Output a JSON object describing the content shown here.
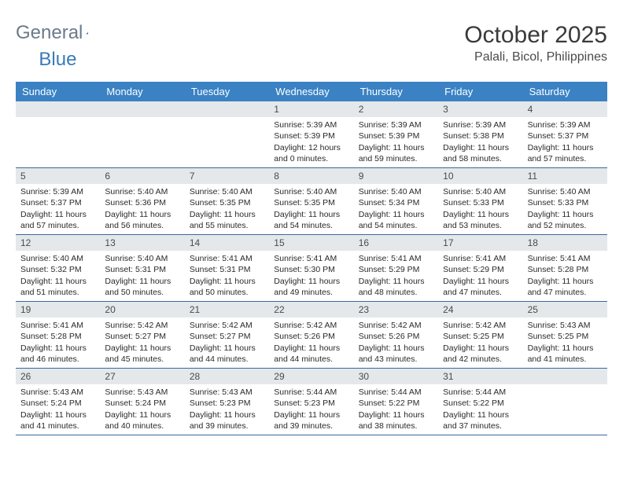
{
  "logo": {
    "word1": "General",
    "word2": "Blue"
  },
  "title": {
    "month": "October 2025",
    "location": "Palali, Bicol, Philippines"
  },
  "colors": {
    "header_bg": "#3a82c4",
    "header_text": "#ffffff",
    "daynum_bg": "#e4e8eb",
    "week_border": "#3a6a9a",
    "logo_gray": "#6b7b8a",
    "logo_blue": "#3a7ab8"
  },
  "day_names": [
    "Sunday",
    "Monday",
    "Tuesday",
    "Wednesday",
    "Thursday",
    "Friday",
    "Saturday"
  ],
  "weeks": [
    [
      {
        "n": "",
        "sunrise": "",
        "sunset": "",
        "daylight1": "",
        "daylight2": ""
      },
      {
        "n": "",
        "sunrise": "",
        "sunset": "",
        "daylight1": "",
        "daylight2": ""
      },
      {
        "n": "",
        "sunrise": "",
        "sunset": "",
        "daylight1": "",
        "daylight2": ""
      },
      {
        "n": "1",
        "sunrise": "Sunrise: 5:39 AM",
        "sunset": "Sunset: 5:39 PM",
        "daylight1": "Daylight: 12 hours",
        "daylight2": "and 0 minutes."
      },
      {
        "n": "2",
        "sunrise": "Sunrise: 5:39 AM",
        "sunset": "Sunset: 5:39 PM",
        "daylight1": "Daylight: 11 hours",
        "daylight2": "and 59 minutes."
      },
      {
        "n": "3",
        "sunrise": "Sunrise: 5:39 AM",
        "sunset": "Sunset: 5:38 PM",
        "daylight1": "Daylight: 11 hours",
        "daylight2": "and 58 minutes."
      },
      {
        "n": "4",
        "sunrise": "Sunrise: 5:39 AM",
        "sunset": "Sunset: 5:37 PM",
        "daylight1": "Daylight: 11 hours",
        "daylight2": "and 57 minutes."
      }
    ],
    [
      {
        "n": "5",
        "sunrise": "Sunrise: 5:39 AM",
        "sunset": "Sunset: 5:37 PM",
        "daylight1": "Daylight: 11 hours",
        "daylight2": "and 57 minutes."
      },
      {
        "n": "6",
        "sunrise": "Sunrise: 5:40 AM",
        "sunset": "Sunset: 5:36 PM",
        "daylight1": "Daylight: 11 hours",
        "daylight2": "and 56 minutes."
      },
      {
        "n": "7",
        "sunrise": "Sunrise: 5:40 AM",
        "sunset": "Sunset: 5:35 PM",
        "daylight1": "Daylight: 11 hours",
        "daylight2": "and 55 minutes."
      },
      {
        "n": "8",
        "sunrise": "Sunrise: 5:40 AM",
        "sunset": "Sunset: 5:35 PM",
        "daylight1": "Daylight: 11 hours",
        "daylight2": "and 54 minutes."
      },
      {
        "n": "9",
        "sunrise": "Sunrise: 5:40 AM",
        "sunset": "Sunset: 5:34 PM",
        "daylight1": "Daylight: 11 hours",
        "daylight2": "and 54 minutes."
      },
      {
        "n": "10",
        "sunrise": "Sunrise: 5:40 AM",
        "sunset": "Sunset: 5:33 PM",
        "daylight1": "Daylight: 11 hours",
        "daylight2": "and 53 minutes."
      },
      {
        "n": "11",
        "sunrise": "Sunrise: 5:40 AM",
        "sunset": "Sunset: 5:33 PM",
        "daylight1": "Daylight: 11 hours",
        "daylight2": "and 52 minutes."
      }
    ],
    [
      {
        "n": "12",
        "sunrise": "Sunrise: 5:40 AM",
        "sunset": "Sunset: 5:32 PM",
        "daylight1": "Daylight: 11 hours",
        "daylight2": "and 51 minutes."
      },
      {
        "n": "13",
        "sunrise": "Sunrise: 5:40 AM",
        "sunset": "Sunset: 5:31 PM",
        "daylight1": "Daylight: 11 hours",
        "daylight2": "and 50 minutes."
      },
      {
        "n": "14",
        "sunrise": "Sunrise: 5:41 AM",
        "sunset": "Sunset: 5:31 PM",
        "daylight1": "Daylight: 11 hours",
        "daylight2": "and 50 minutes."
      },
      {
        "n": "15",
        "sunrise": "Sunrise: 5:41 AM",
        "sunset": "Sunset: 5:30 PM",
        "daylight1": "Daylight: 11 hours",
        "daylight2": "and 49 minutes."
      },
      {
        "n": "16",
        "sunrise": "Sunrise: 5:41 AM",
        "sunset": "Sunset: 5:29 PM",
        "daylight1": "Daylight: 11 hours",
        "daylight2": "and 48 minutes."
      },
      {
        "n": "17",
        "sunrise": "Sunrise: 5:41 AM",
        "sunset": "Sunset: 5:29 PM",
        "daylight1": "Daylight: 11 hours",
        "daylight2": "and 47 minutes."
      },
      {
        "n": "18",
        "sunrise": "Sunrise: 5:41 AM",
        "sunset": "Sunset: 5:28 PM",
        "daylight1": "Daylight: 11 hours",
        "daylight2": "and 47 minutes."
      }
    ],
    [
      {
        "n": "19",
        "sunrise": "Sunrise: 5:41 AM",
        "sunset": "Sunset: 5:28 PM",
        "daylight1": "Daylight: 11 hours",
        "daylight2": "and 46 minutes."
      },
      {
        "n": "20",
        "sunrise": "Sunrise: 5:42 AM",
        "sunset": "Sunset: 5:27 PM",
        "daylight1": "Daylight: 11 hours",
        "daylight2": "and 45 minutes."
      },
      {
        "n": "21",
        "sunrise": "Sunrise: 5:42 AM",
        "sunset": "Sunset: 5:27 PM",
        "daylight1": "Daylight: 11 hours",
        "daylight2": "and 44 minutes."
      },
      {
        "n": "22",
        "sunrise": "Sunrise: 5:42 AM",
        "sunset": "Sunset: 5:26 PM",
        "daylight1": "Daylight: 11 hours",
        "daylight2": "and 44 minutes."
      },
      {
        "n": "23",
        "sunrise": "Sunrise: 5:42 AM",
        "sunset": "Sunset: 5:26 PM",
        "daylight1": "Daylight: 11 hours",
        "daylight2": "and 43 minutes."
      },
      {
        "n": "24",
        "sunrise": "Sunrise: 5:42 AM",
        "sunset": "Sunset: 5:25 PM",
        "daylight1": "Daylight: 11 hours",
        "daylight2": "and 42 minutes."
      },
      {
        "n": "25",
        "sunrise": "Sunrise: 5:43 AM",
        "sunset": "Sunset: 5:25 PM",
        "daylight1": "Daylight: 11 hours",
        "daylight2": "and 41 minutes."
      }
    ],
    [
      {
        "n": "26",
        "sunrise": "Sunrise: 5:43 AM",
        "sunset": "Sunset: 5:24 PM",
        "daylight1": "Daylight: 11 hours",
        "daylight2": "and 41 minutes."
      },
      {
        "n": "27",
        "sunrise": "Sunrise: 5:43 AM",
        "sunset": "Sunset: 5:24 PM",
        "daylight1": "Daylight: 11 hours",
        "daylight2": "and 40 minutes."
      },
      {
        "n": "28",
        "sunrise": "Sunrise: 5:43 AM",
        "sunset": "Sunset: 5:23 PM",
        "daylight1": "Daylight: 11 hours",
        "daylight2": "and 39 minutes."
      },
      {
        "n": "29",
        "sunrise": "Sunrise: 5:44 AM",
        "sunset": "Sunset: 5:23 PM",
        "daylight1": "Daylight: 11 hours",
        "daylight2": "and 39 minutes."
      },
      {
        "n": "30",
        "sunrise": "Sunrise: 5:44 AM",
        "sunset": "Sunset: 5:22 PM",
        "daylight1": "Daylight: 11 hours",
        "daylight2": "and 38 minutes."
      },
      {
        "n": "31",
        "sunrise": "Sunrise: 5:44 AM",
        "sunset": "Sunset: 5:22 PM",
        "daylight1": "Daylight: 11 hours",
        "daylight2": "and 37 minutes."
      },
      {
        "n": "",
        "sunrise": "",
        "sunset": "",
        "daylight1": "",
        "daylight2": ""
      }
    ]
  ]
}
